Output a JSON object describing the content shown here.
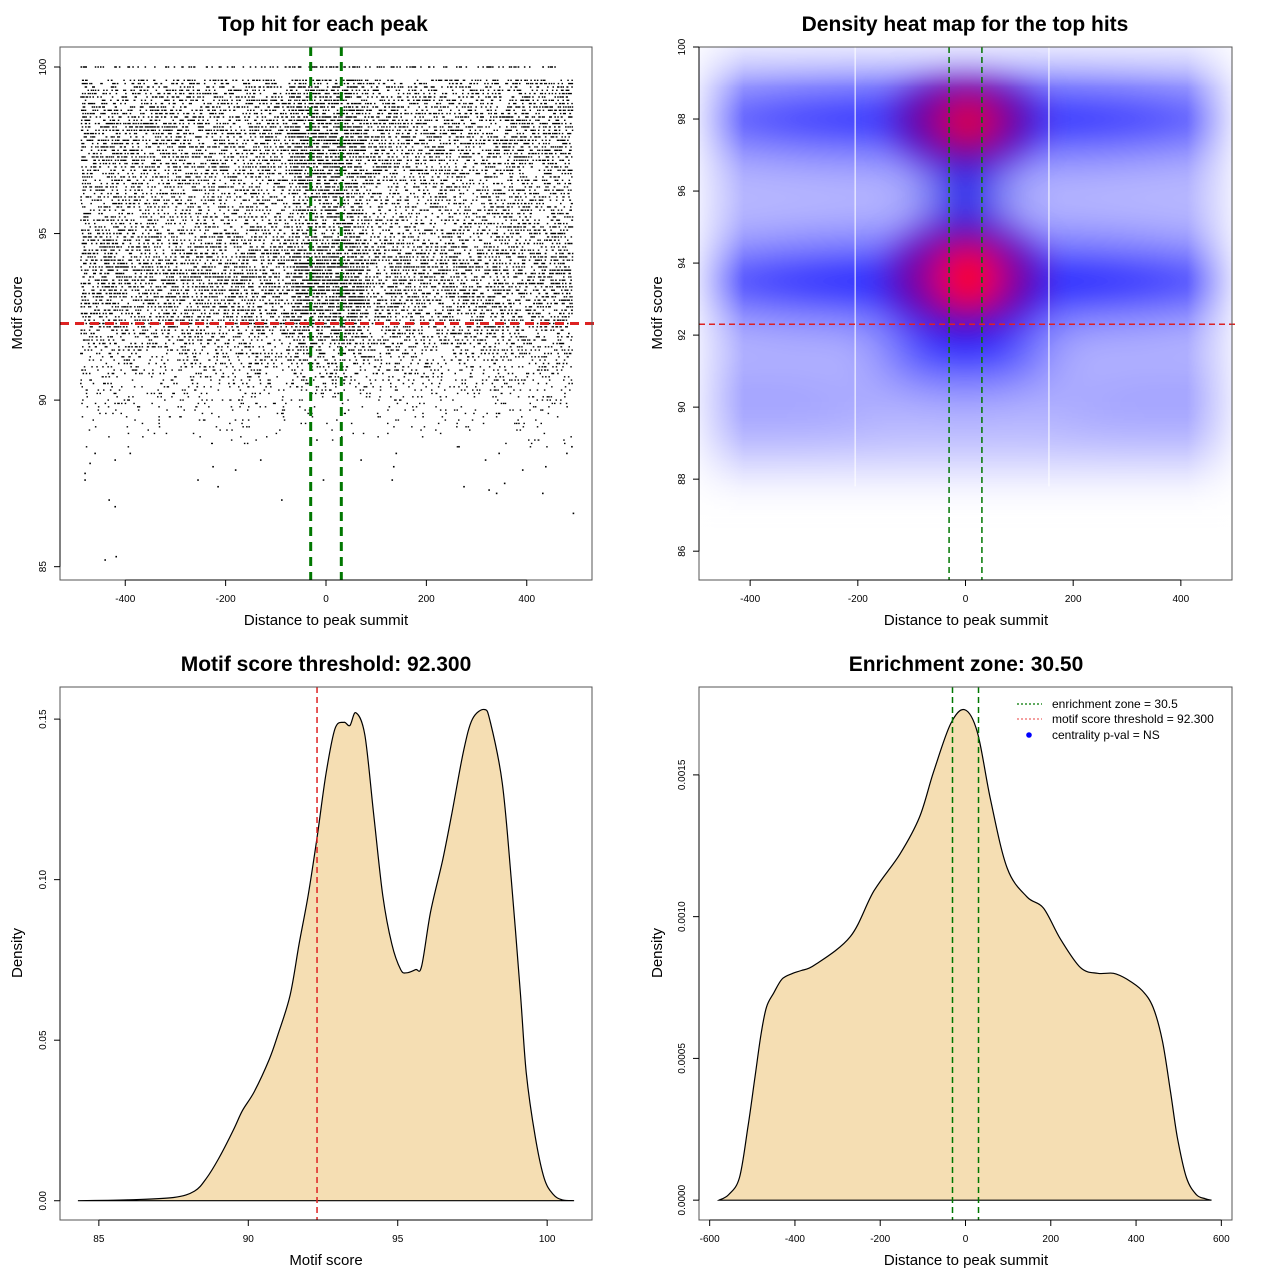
{
  "chart_data": [
    {
      "id": "scatter",
      "type": "scatter",
      "title": "Top hit for each peak",
      "xlabel": "Distance to peak summit",
      "ylabel": "Motif score",
      "xlim": [
        -530,
        530
      ],
      "ylim": [
        84.6,
        100.6
      ],
      "xticks": [
        -400,
        -200,
        0,
        200,
        400
      ],
      "yticks": [
        85,
        90,
        95,
        100
      ],
      "x_range_of_points": [
        -490,
        490
      ],
      "score_step": 0.1,
      "row_density_profile": [
        {
          "score": 100.0,
          "fill": 0.55
        },
        {
          "score": 99.6,
          "fill": 0.6
        },
        {
          "score": 99.0,
          "fill": 0.65
        },
        {
          "score": 98.5,
          "fill": 0.78
        },
        {
          "score": 98.0,
          "fill": 0.85
        },
        {
          "score": 97.5,
          "fill": 0.8
        },
        {
          "score": 97.0,
          "fill": 0.72
        },
        {
          "score": 96.5,
          "fill": 0.62
        },
        {
          "score": 96.0,
          "fill": 0.55
        },
        {
          "score": 95.5,
          "fill": 0.55
        },
        {
          "score": 95.0,
          "fill": 0.6
        },
        {
          "score": 94.5,
          "fill": 0.72
        },
        {
          "score": 94.0,
          "fill": 0.85
        },
        {
          "score": 93.5,
          "fill": 0.88
        },
        {
          "score": 93.0,
          "fill": 0.82
        },
        {
          "score": 92.5,
          "fill": 0.7
        },
        {
          "score": 92.0,
          "fill": 0.55
        },
        {
          "score": 91.5,
          "fill": 0.42
        },
        {
          "score": 91.0,
          "fill": 0.3
        },
        {
          "score": 90.5,
          "fill": 0.22
        },
        {
          "score": 90.0,
          "fill": 0.14
        },
        {
          "score": 89.5,
          "fill": 0.08
        },
        {
          "score": 89.0,
          "fill": 0.04
        },
        {
          "score": 88.6,
          "fill": 0.02
        }
      ],
      "outliers": [
        [
          -480,
          87.8
        ],
        [
          -480,
          87.6
        ],
        [
          -432,
          87.0
        ],
        [
          -420,
          86.8
        ],
        [
          -255,
          87.6
        ],
        [
          -215,
          87.4
        ],
        [
          -88,
          87.0
        ],
        [
          -5,
          87.6
        ],
        [
          132,
          87.6
        ],
        [
          275,
          87.4
        ],
        [
          325,
          87.3
        ],
        [
          340,
          87.2
        ],
        [
          356,
          87.5
        ],
        [
          432,
          87.2
        ],
        [
          493,
          86.6
        ],
        [
          -440,
          85.2
        ],
        [
          -418,
          85.3
        ],
        [
          -470,
          88.1
        ],
        [
          -460,
          88.4
        ],
        [
          -420,
          88.2
        ],
        [
          -390,
          88.4
        ],
        [
          -225,
          88.0
        ],
        [
          -180,
          87.9
        ],
        [
          -130,
          88.2
        ],
        [
          -18,
          88.8
        ],
        [
          70,
          88.2
        ],
        [
          135,
          88.0
        ],
        [
          140,
          88.4
        ],
        [
          265,
          88.6
        ],
        [
          318,
          88.2
        ],
        [
          345,
          88.4
        ],
        [
          392,
          87.9
        ],
        [
          438,
          88.0
        ],
        [
          480,
          88.4
        ],
        [
          490,
          88.6
        ]
      ],
      "hlines": [
        {
          "y": 92.3,
          "color": "#dd2222",
          "style": "dashed"
        }
      ],
      "vlines": [
        {
          "x": -30.5,
          "color": "#007700",
          "style": "dashed"
        },
        {
          "x": 30.5,
          "color": "#007700",
          "style": "dashed"
        }
      ]
    },
    {
      "id": "heatmap",
      "type": "heatmap",
      "title": "Density heat map for the top hits",
      "xlabel": "Distance to peak summit",
      "ylabel": "Motif score",
      "xlim": [
        -495,
        495
      ],
      "ylim": [
        85.2,
        100
      ],
      "xticks": [
        -400,
        -200,
        0,
        200,
        400
      ],
      "yticks": [
        86,
        88,
        90,
        92,
        94,
        96,
        98,
        100
      ],
      "colormap": [
        "#ffffff",
        "#0000ff",
        "#ff0000"
      ],
      "hotspots": [
        {
          "x": 5,
          "y": 97.9,
          "level": "high"
        },
        {
          "x": 5,
          "y": 93.6,
          "level": "highest"
        }
      ],
      "bands": [
        {
          "y": 98.0,
          "level": "medium"
        },
        {
          "y": 93.5,
          "level": "medium"
        },
        {
          "y": 90.2,
          "level": "low"
        }
      ],
      "white_vlines": [
        -205,
        155
      ],
      "hlines": [
        {
          "y": 92.3,
          "color": "#dd2222",
          "style": "dashed"
        }
      ],
      "vlines": [
        {
          "x": -30.5,
          "color": "#007700",
          "style": "dashed"
        },
        {
          "x": 30.5,
          "color": "#007700",
          "style": "dashed"
        }
      ]
    },
    {
      "id": "score-density",
      "type": "area",
      "title": "Motif score threshold: 92.300",
      "xlabel": "Motif score",
      "ylabel": "Density",
      "xlim": [
        83.7,
        101.5
      ],
      "ylim": [
        -0.006,
        0.16
      ],
      "xticks": [
        85,
        90,
        95,
        100
      ],
      "yticks": [
        "0.00",
        "0.05",
        "0.10",
        "0.15"
      ],
      "fill": "#f5deb3",
      "x": [
        84.3,
        86.0,
        87.5,
        88.2,
        88.6,
        89.0,
        89.5,
        89.8,
        90.2,
        90.7,
        91.0,
        91.4,
        91.7,
        92.0,
        92.3,
        92.6,
        92.9,
        93.2,
        93.4,
        93.6,
        93.9,
        94.2,
        94.5,
        94.8,
        95.1,
        95.3,
        95.6,
        95.8,
        96.1,
        96.5,
        96.8,
        97.2,
        97.5,
        97.9,
        98.1,
        98.5,
        98.8,
        99.1,
        99.3,
        99.6,
        99.9,
        100.2,
        100.5,
        100.9
      ],
      "y": [
        0.0,
        0.0003,
        0.001,
        0.003,
        0.007,
        0.013,
        0.022,
        0.028,
        0.034,
        0.044,
        0.052,
        0.064,
        0.08,
        0.095,
        0.113,
        0.133,
        0.147,
        0.149,
        0.148,
        0.152,
        0.145,
        0.12,
        0.095,
        0.08,
        0.072,
        0.071,
        0.072,
        0.073,
        0.09,
        0.106,
        0.12,
        0.14,
        0.15,
        0.153,
        0.149,
        0.13,
        0.1,
        0.065,
        0.04,
        0.02,
        0.007,
        0.002,
        0.0003,
        0.0
      ],
      "vlines": [
        {
          "x": 92.3,
          "color": "#dd2222",
          "style": "dashed"
        }
      ]
    },
    {
      "id": "distance-density",
      "type": "area",
      "title": "Enrichment zone: 30.50",
      "xlabel": "Distance to peak summit",
      "ylabel": "Density",
      "xlim": [
        -625,
        625
      ],
      "ylim": [
        -7e-05,
        0.00181
      ],
      "xticks": [
        -600,
        -400,
        -200,
        0,
        200,
        400,
        600
      ],
      "yticks": [
        "0.0000",
        "0.0005",
        "0.0010",
        "0.0015"
      ],
      "fill": "#f5deb3",
      "x": [
        -578,
        -555,
        -530,
        -510,
        -495,
        -480,
        -467,
        -450,
        -430,
        -405,
        -385,
        -353,
        -270,
        -215,
        -154,
        -108,
        -75,
        -35,
        -2,
        28,
        59,
        98,
        144,
        183,
        223,
        270,
        310,
        347,
        378,
        414,
        440,
        462,
        481,
        497,
        518,
        541,
        562,
        577
      ],
      "y": [
        0.0,
        2e-05,
        8e-05,
        0.00026,
        0.00042,
        0.00058,
        0.00068,
        0.00073,
        0.00078,
        0.0008,
        0.00081,
        0.00083,
        0.00093,
        0.00109,
        0.00122,
        0.00135,
        0.00151,
        0.00168,
        0.00173,
        0.00165,
        0.00141,
        0.00117,
        0.00107,
        0.00103,
        0.00092,
        0.00082,
        0.0008,
        0.0008,
        0.00078,
        0.00074,
        0.00068,
        0.00056,
        0.00038,
        0.00022,
        8e-05,
        2e-05,
        5e-06,
        0.0
      ],
      "vlines": [
        {
          "x": -30.5,
          "color": "#007700",
          "style": "dashed"
        },
        {
          "x": 30.5,
          "color": "#007700",
          "style": "dashed"
        }
      ],
      "legend": {
        "position": "top-right",
        "entries": [
          {
            "label": "enrichment zone = 30.5",
            "color": "#007700",
            "symbol": "dotted-line"
          },
          {
            "label": "motif score threshold = 92.300",
            "color": "#ee6666",
            "symbol": "dotted-line"
          },
          {
            "label": "centrality p-val = NS",
            "color": "#0000ff",
            "symbol": "dot"
          }
        ]
      }
    }
  ]
}
